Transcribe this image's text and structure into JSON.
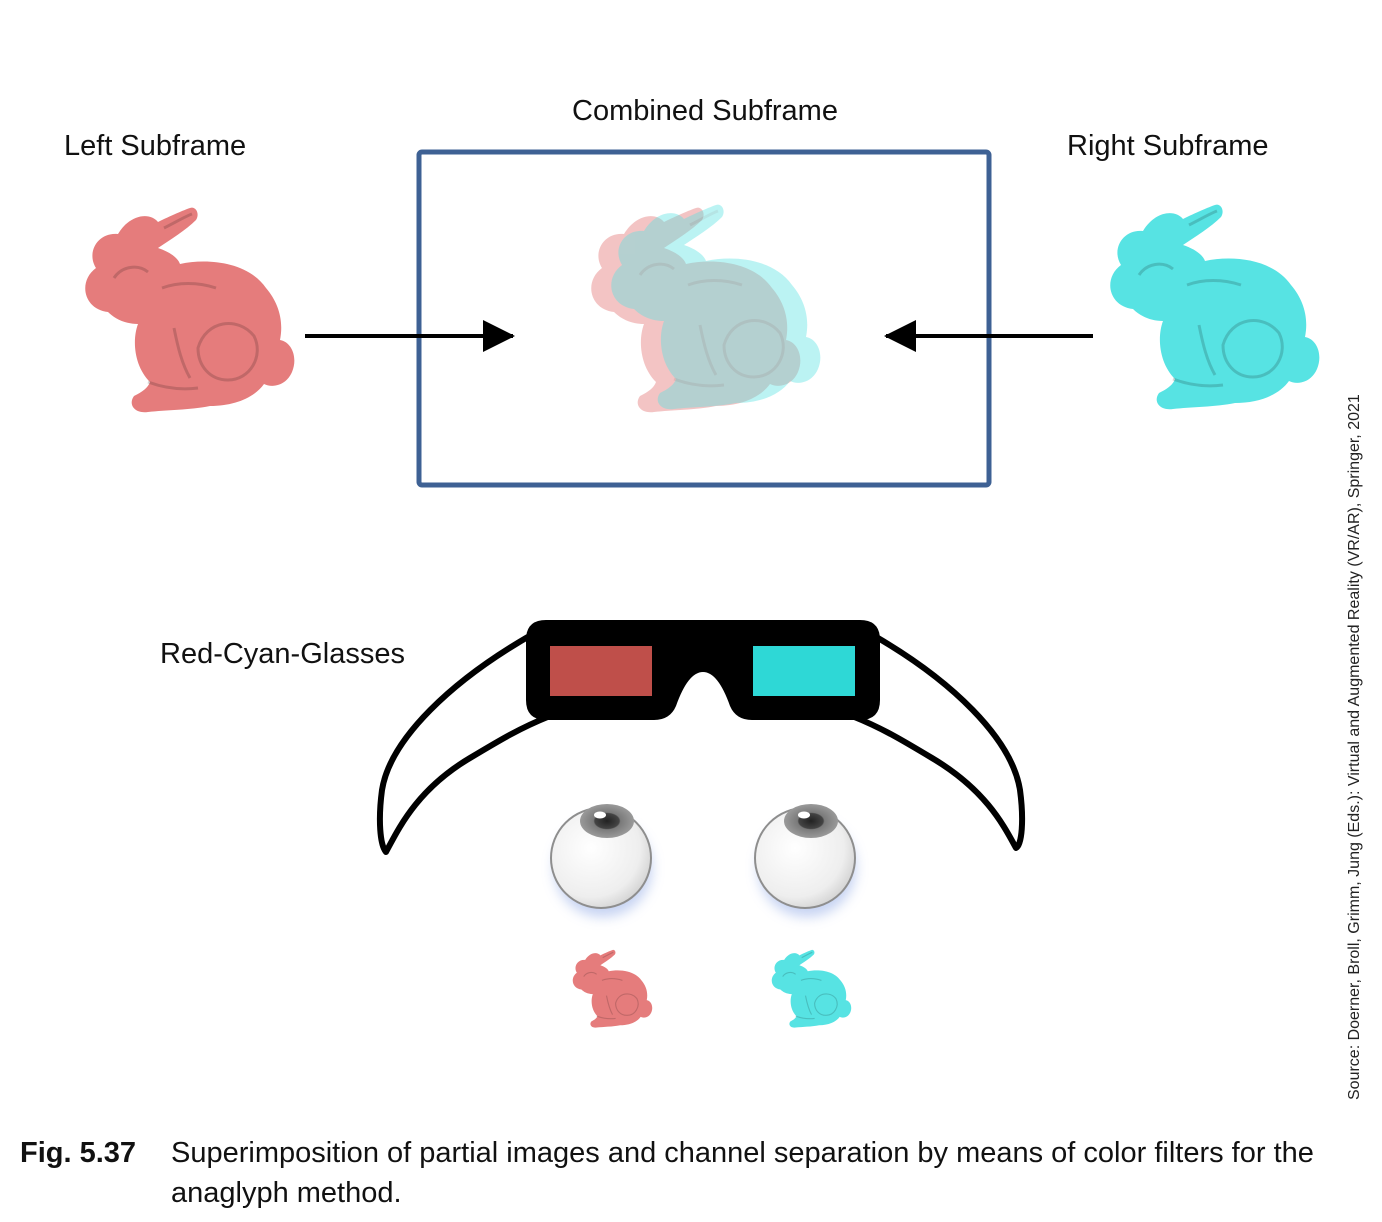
{
  "labels": {
    "left": "Left Subframe",
    "combined": "Combined  Subframe",
    "right": "Right Subframe",
    "glasses": "Red-Cyan-Glasses"
  },
  "source": "Source: Doerner, Broll, Grimm, Jung (Eds.): Virtual and Augmented Reality (VR/AR), Springer, 2021",
  "caption": {
    "number": "Fig. 5.37",
    "text": "Superimposition of partial images and channel separation by means of color filters for the anaglyph method."
  },
  "colors": {
    "red": "#e57c7c",
    "cyan": "#57e3e3",
    "frame": "#3e6194",
    "lens_red": "#bf4f4a",
    "lens_cyan": "#2ed8d6"
  }
}
